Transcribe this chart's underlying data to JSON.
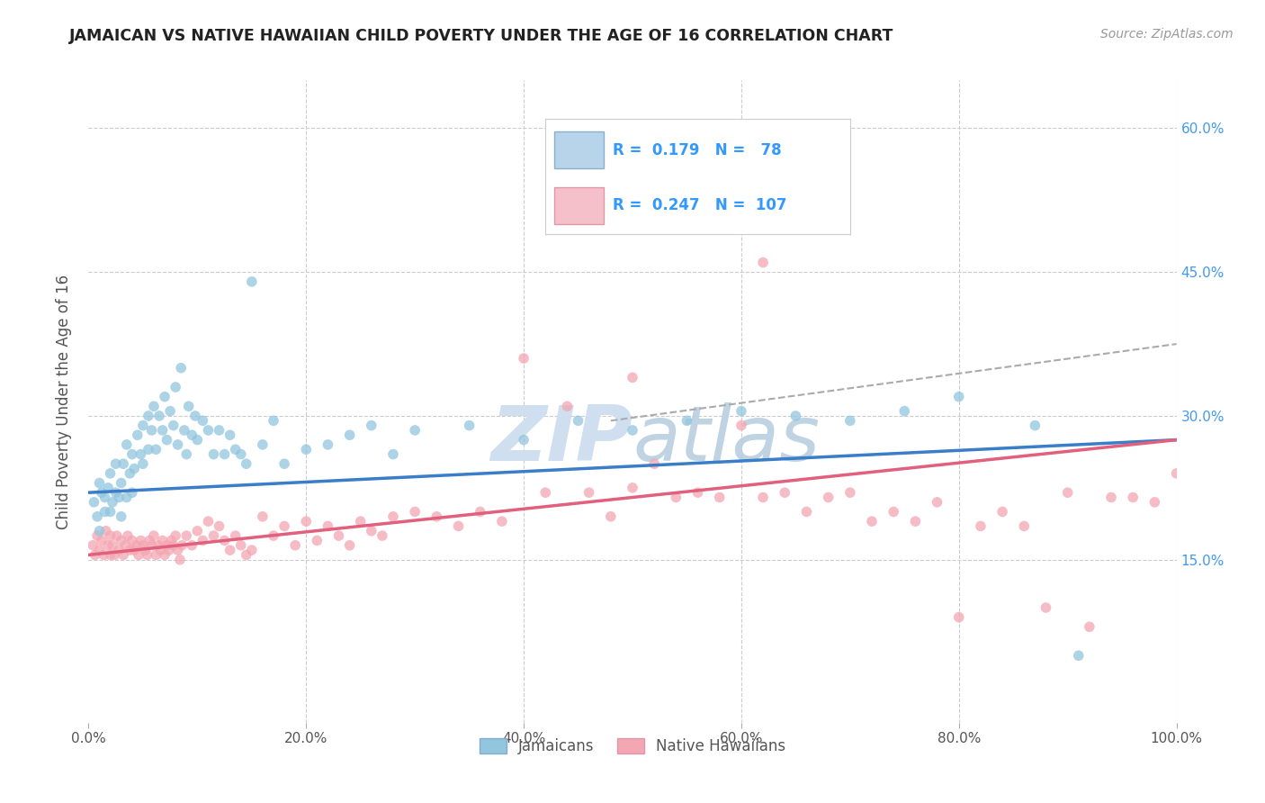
{
  "title": "JAMAICAN VS NATIVE HAWAIIAN CHILD POVERTY UNDER THE AGE OF 16 CORRELATION CHART",
  "source": "Source: ZipAtlas.com",
  "ylabel": "Child Poverty Under the Age of 16",
  "xlim": [
    0.0,
    1.0
  ],
  "ylim": [
    -0.02,
    0.65
  ],
  "legend_R_blue": "0.179",
  "legend_N_blue": "78",
  "legend_R_pink": "0.247",
  "legend_N_pink": "107",
  "blue_color": "#92c5de",
  "pink_color": "#f4a6b2",
  "blue_line_color": "#3a7dc9",
  "pink_line_color": "#e0607e",
  "dashed_line_color": "#aaaaaa",
  "background_color": "#ffffff",
  "grid_color": "#cccccc",
  "watermark_color": "#d0dff0",
  "title_color": "#222222",
  "source_color": "#999999",
  "axis_label_color": "#4499ee",
  "ylabel_color": "#555555",
  "blue_scatter_x": [
    0.005,
    0.008,
    0.01,
    0.01,
    0.012,
    0.015,
    0.015,
    0.018,
    0.02,
    0.02,
    0.022,
    0.025,
    0.025,
    0.028,
    0.03,
    0.03,
    0.032,
    0.035,
    0.035,
    0.038,
    0.04,
    0.04,
    0.042,
    0.045,
    0.048,
    0.05,
    0.05,
    0.055,
    0.055,
    0.058,
    0.06,
    0.062,
    0.065,
    0.068,
    0.07,
    0.072,
    0.075,
    0.078,
    0.08,
    0.082,
    0.085,
    0.088,
    0.09,
    0.092,
    0.095,
    0.098,
    0.1,
    0.105,
    0.11,
    0.115,
    0.12,
    0.125,
    0.13,
    0.135,
    0.14,
    0.145,
    0.15,
    0.16,
    0.17,
    0.18,
    0.2,
    0.22,
    0.24,
    0.26,
    0.28,
    0.3,
    0.35,
    0.4,
    0.45,
    0.5,
    0.55,
    0.6,
    0.65,
    0.7,
    0.75,
    0.8,
    0.87,
    0.91
  ],
  "blue_scatter_y": [
    0.21,
    0.195,
    0.23,
    0.18,
    0.22,
    0.2,
    0.215,
    0.225,
    0.24,
    0.2,
    0.21,
    0.22,
    0.25,
    0.215,
    0.23,
    0.195,
    0.25,
    0.27,
    0.215,
    0.24,
    0.26,
    0.22,
    0.245,
    0.28,
    0.26,
    0.29,
    0.25,
    0.3,
    0.265,
    0.285,
    0.31,
    0.265,
    0.3,
    0.285,
    0.32,
    0.275,
    0.305,
    0.29,
    0.33,
    0.27,
    0.35,
    0.285,
    0.26,
    0.31,
    0.28,
    0.3,
    0.275,
    0.295,
    0.285,
    0.26,
    0.285,
    0.26,
    0.28,
    0.265,
    0.26,
    0.25,
    0.44,
    0.27,
    0.295,
    0.25,
    0.265,
    0.27,
    0.28,
    0.29,
    0.26,
    0.285,
    0.29,
    0.275,
    0.295,
    0.285,
    0.295,
    0.305,
    0.3,
    0.295,
    0.305,
    0.32,
    0.29,
    0.05
  ],
  "pink_scatter_x": [
    0.004,
    0.006,
    0.008,
    0.01,
    0.012,
    0.014,
    0.016,
    0.018,
    0.02,
    0.02,
    0.022,
    0.024,
    0.026,
    0.028,
    0.03,
    0.032,
    0.034,
    0.036,
    0.038,
    0.04,
    0.042,
    0.044,
    0.046,
    0.048,
    0.05,
    0.052,
    0.054,
    0.056,
    0.058,
    0.06,
    0.062,
    0.064,
    0.066,
    0.068,
    0.07,
    0.072,
    0.074,
    0.076,
    0.078,
    0.08,
    0.082,
    0.084,
    0.086,
    0.09,
    0.095,
    0.1,
    0.105,
    0.11,
    0.115,
    0.12,
    0.125,
    0.13,
    0.135,
    0.14,
    0.145,
    0.15,
    0.16,
    0.17,
    0.18,
    0.19,
    0.2,
    0.21,
    0.22,
    0.23,
    0.24,
    0.25,
    0.26,
    0.27,
    0.28,
    0.3,
    0.32,
    0.34,
    0.36,
    0.38,
    0.4,
    0.42,
    0.44,
    0.46,
    0.48,
    0.5,
    0.52,
    0.54,
    0.56,
    0.58,
    0.6,
    0.62,
    0.64,
    0.66,
    0.68,
    0.7,
    0.72,
    0.74,
    0.76,
    0.78,
    0.8,
    0.82,
    0.84,
    0.86,
    0.88,
    0.9,
    0.92,
    0.94,
    0.96,
    0.98,
    1.0,
    0.5,
    0.62
  ],
  "pink_scatter_y": [
    0.165,
    0.155,
    0.175,
    0.16,
    0.17,
    0.155,
    0.18,
    0.165,
    0.175,
    0.155,
    0.165,
    0.155,
    0.175,
    0.16,
    0.17,
    0.155,
    0.165,
    0.175,
    0.16,
    0.17,
    0.16,
    0.165,
    0.155,
    0.17,
    0.165,
    0.16,
    0.155,
    0.17,
    0.165,
    0.175,
    0.155,
    0.165,
    0.16,
    0.17,
    0.155,
    0.165,
    0.16,
    0.17,
    0.165,
    0.175,
    0.16,
    0.15,
    0.165,
    0.175,
    0.165,
    0.18,
    0.17,
    0.19,
    0.175,
    0.185,
    0.17,
    0.16,
    0.175,
    0.165,
    0.155,
    0.16,
    0.195,
    0.175,
    0.185,
    0.165,
    0.19,
    0.17,
    0.185,
    0.175,
    0.165,
    0.19,
    0.18,
    0.175,
    0.195,
    0.2,
    0.195,
    0.185,
    0.2,
    0.19,
    0.36,
    0.22,
    0.31,
    0.22,
    0.195,
    0.225,
    0.25,
    0.215,
    0.22,
    0.215,
    0.29,
    0.215,
    0.22,
    0.2,
    0.215,
    0.22,
    0.19,
    0.2,
    0.19,
    0.21,
    0.09,
    0.185,
    0.2,
    0.185,
    0.1,
    0.22,
    0.08,
    0.215,
    0.215,
    0.21,
    0.24,
    0.34,
    0.46
  ],
  "blue_line_x0": 0.0,
  "blue_line_y0": 0.22,
  "blue_line_x1": 1.0,
  "blue_line_y1": 0.275,
  "pink_line_x0": 0.0,
  "pink_line_y0": 0.155,
  "pink_line_x1": 1.0,
  "pink_line_y1": 0.275,
  "dash_line_x0": 0.48,
  "dash_line_y0": 0.295,
  "dash_line_x1": 1.0,
  "dash_line_y1": 0.375
}
